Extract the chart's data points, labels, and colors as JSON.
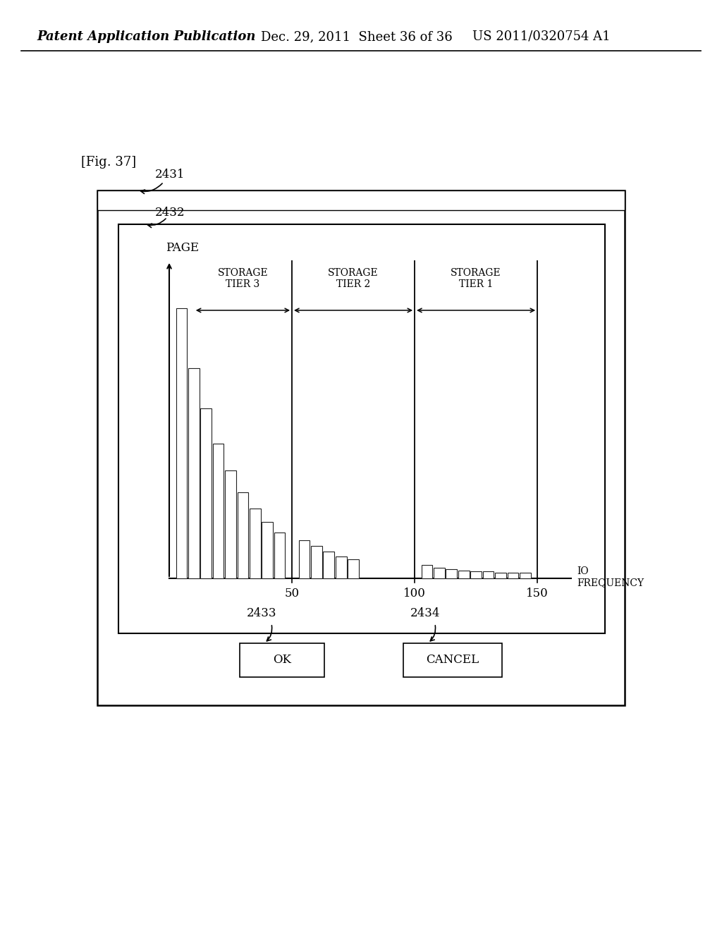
{
  "fig_label": "[Fig. 37]",
  "patent_header_left": "Patent Application Publication",
  "patent_header_mid": "Dec. 29, 2011  Sheet 36 of 36",
  "patent_header_right": "US 2011/0320754 A1",
  "label_2431": "2431",
  "label_2432": "2432",
  "label_2433": "2433",
  "label_2434": "2434",
  "ok_text": "OK",
  "cancel_text": "CANCEL",
  "page_label": "PAGE",
  "io_freq_label": "IO\nFREQUENCY",
  "tier1_label": "STORAGE\nTIER 1",
  "tier2_label": "STORAGE\nTIER 2",
  "tier3_label": "STORAGE\nTIER 3",
  "xtick_labels": [
    "50",
    "100",
    "150"
  ],
  "bar_positions": [
    5,
    10,
    15,
    20,
    25,
    30,
    35,
    40,
    45,
    55,
    60,
    65,
    70,
    75,
    105,
    110,
    115,
    120,
    125,
    130,
    135,
    140,
    145
  ],
  "bar_heights": [
    100,
    78,
    63,
    50,
    40,
    32,
    26,
    21,
    17,
    14,
    12,
    10,
    8,
    7,
    5,
    4,
    3.5,
    3,
    2.5,
    2.5,
    2,
    2,
    2
  ],
  "bar_width": 4.5,
  "background_color": "white",
  "xlim": [
    0,
    158
  ],
  "ylim": [
    0,
    115
  ]
}
